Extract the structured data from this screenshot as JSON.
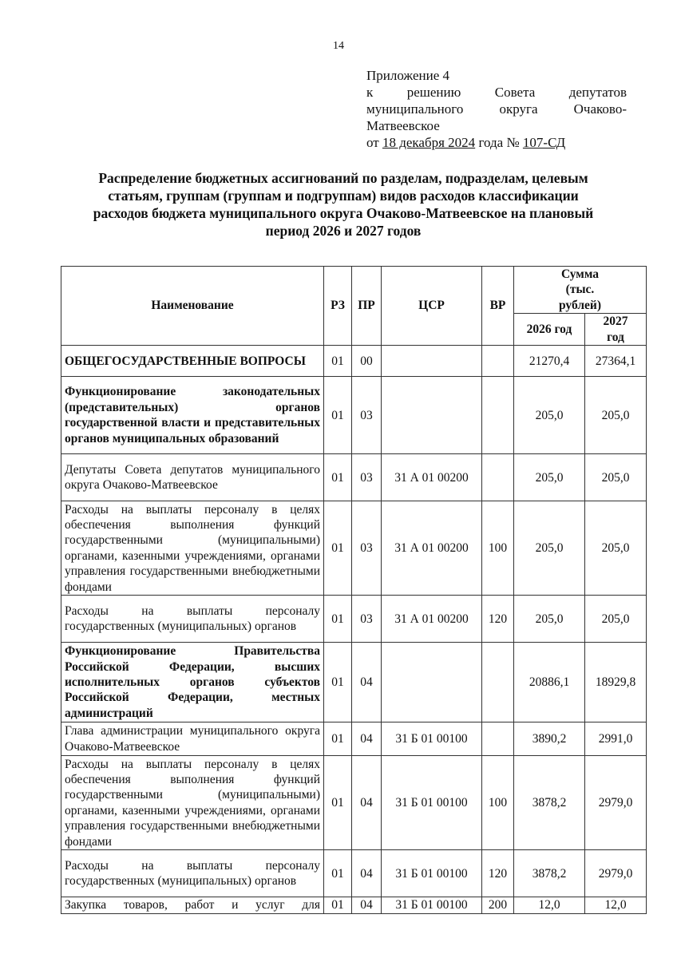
{
  "page_number": "14",
  "appendix": {
    "line1": "Приложение 4",
    "line2": "к решению Совета депутатов",
    "line3": "муниципального округа Очаково-",
    "line4": "Матвеевское",
    "date_prefix": "от ",
    "date": "18 декабря 2024",
    "date_mid": " года № ",
    "number": "107-СД"
  },
  "title": "Распределение бюджетных ассигнований по разделам, подразделам, целевым статьям, группам (группам и подгруппам) видов расходов классификации расходов бюджета муниципального округа Очаково-Матвеевское на плановый период 2026 и 2027 годов",
  "table": {
    "headers": {
      "name": "Наименование",
      "rz": "РЗ",
      "pr": "ПР",
      "csr": "ЦСР",
      "vr": "ВР",
      "sum": "Сумма (тыс. рублей)",
      "y2026": "2026 год",
      "y2027": "2027 год"
    },
    "rows": [
      {
        "name": "ОБЩЕГОСУДАРСТВЕННЫЕ ВОПРОСЫ",
        "rz": "01",
        "pr": "00",
        "csr": "",
        "vr": "",
        "y2026": "21270,4",
        "y2027": "27364,1",
        "bold": true
      },
      {
        "name": "Функционирование законодательных (представительных) органов государственной власти и представительных органов муниципальных образований",
        "rz": "01",
        "pr": "03",
        "csr": "",
        "vr": "",
        "y2026": "205,0",
        "y2027": "205,0",
        "bold": true
      },
      {
        "name": "Депутаты Совета депутатов муниципального округа Очаково-Матвеевское",
        "rz": "01",
        "pr": "03",
        "csr": "31 А 01 00200",
        "vr": "",
        "y2026": "205,0",
        "y2027": "205,0"
      },
      {
        "name": "Расходы на выплаты персоналу в целях обеспечения выполнения функций государственными (муниципальными) органами, казенными учреждениями, органами управления государственными внебюджетными фондами",
        "rz": "01",
        "pr": "03",
        "csr": "31 А 01 00200",
        "vr": "100",
        "y2026": "205,0",
        "y2027": "205,0"
      },
      {
        "name": "Расходы на выплаты персоналу государственных (муниципальных) органов",
        "rz": "01",
        "pr": "03",
        "csr": "31 А 01 00200",
        "vr": "120",
        "y2026": "205,0",
        "y2027": "205,0"
      },
      {
        "name": "Функционирование Правительства Российской Федерации, высших исполнительных органов субъектов Российской Федерации, местных администраций",
        "rz": "01",
        "pr": "04",
        "csr": "",
        "vr": "",
        "y2026": "20886,1",
        "y2027": "18929,8",
        "bold": true
      },
      {
        "name": "Глава администрации муниципального округа Очаково-Матвеевское",
        "rz": "01",
        "pr": "04",
        "csr": "31 Б 01 00100",
        "vr": "",
        "y2026": "3890,2",
        "y2027": "2991,0"
      },
      {
        "name": "Расходы на выплаты персоналу в целях обеспечения выполнения функций государственными (муниципальными) органами, казенными учреждениями, органами управления государственными внебюджетными фондами",
        "rz": "01",
        "pr": "04",
        "csr": "31 Б 01 00100",
        "vr": "100",
        "y2026": "3878,2",
        "y2027": "2979,0"
      },
      {
        "name": "Расходы на выплаты персоналу государственных (муниципальных) органов",
        "rz": "01",
        "pr": "04",
        "csr": "31 Б 01 00100",
        "vr": "120",
        "y2026": "3878,2",
        "y2027": "2979,0"
      },
      {
        "name": "Закупка товаров, работ и услуг для",
        "rz": "01",
        "pr": "04",
        "csr": "31 Б 01 00100",
        "vr": "200",
        "y2026": "12,0",
        "y2027": "12,0",
        "cut": true
      }
    ]
  }
}
